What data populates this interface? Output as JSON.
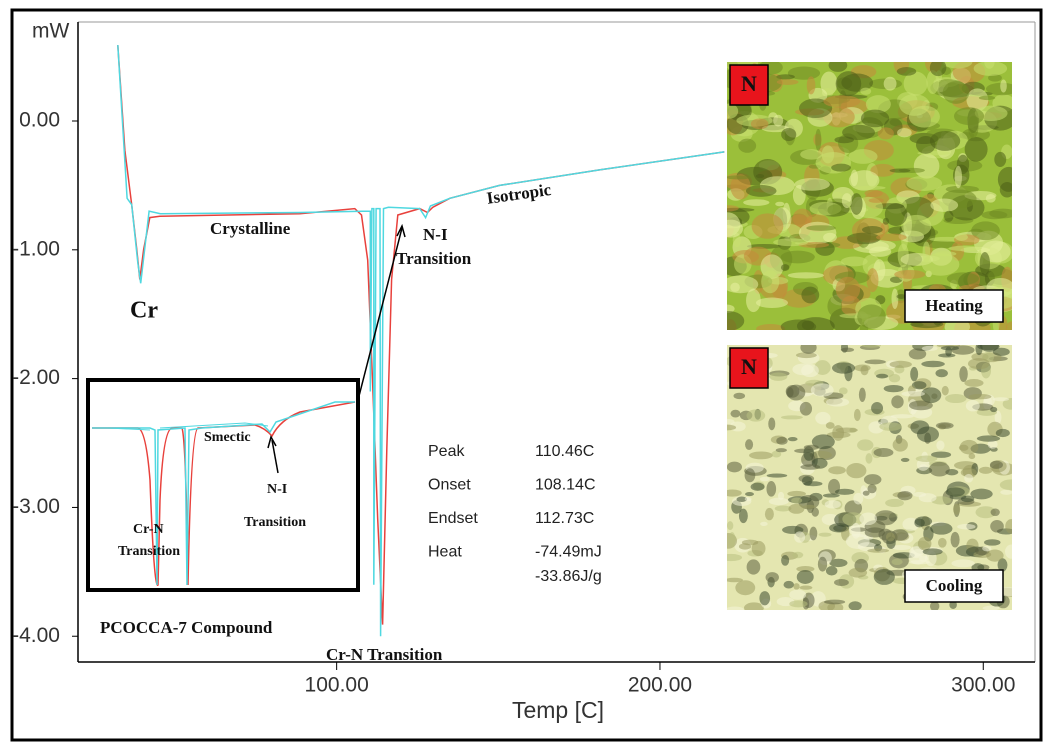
{
  "chart_data": {
    "type": "line",
    "ylabel": "mW",
    "xlabel": "Temp  [C]",
    "xlim": [
      20,
      316
    ],
    "ylim": [
      -4.2,
      0.59
    ],
    "xticks": [
      {
        "value": 100,
        "label": "100.00"
      },
      {
        "value": 200,
        "label": "200.00"
      },
      {
        "value": 300,
        "label": "300.00"
      }
    ],
    "yticks": [
      {
        "value": 0,
        "label": "0.00"
      },
      {
        "value": -1,
        "label": "-1.00"
      },
      {
        "value": -2,
        "label": "-2.00"
      },
      {
        "value": -3,
        "label": "-3.00"
      },
      {
        "value": -4,
        "label": "-4.00"
      }
    ],
    "series": [
      {
        "color": "#e8413c",
        "x": [
          32.3,
          34.5,
          36.6,
          38.2,
          39.1,
          40.3,
          42.2,
          45.3,
          88.6,
          105.6,
          107.7,
          109.6,
          111.1,
          112.7,
          114.2,
          115.5,
          117.0,
          118.9,
          125.7,
          128.1,
          129.7,
          135.0,
          150.4,
          181.3,
          219.9
        ],
        "values": [
          0.59,
          -0.23,
          -0.65,
          -1.0,
          -1.23,
          -1.0,
          -0.75,
          -0.74,
          -0.72,
          -0.68,
          -0.73,
          -1.08,
          -2.01,
          -3.09,
          -3.91,
          -2.55,
          -1.23,
          -0.73,
          -0.68,
          -0.71,
          -0.67,
          -0.6,
          -0.5,
          -0.38,
          -0.24
        ]
      },
      {
        "color": "#4fd8e0",
        "x": [
          32.3,
          35.2,
          36.6,
          38.5,
          39.4,
          40.6,
          42.0,
          45.5,
          88.6,
          108.0,
          110.4,
          110.4,
          110.9,
          111.5,
          111.5,
          112.2,
          113.4,
          113.6,
          114.5,
          116.0,
          125.7,
          127.5,
          129.0,
          135.0,
          150.4,
          181.3,
          219.9
        ],
        "values": [
          0.59,
          -0.6,
          -0.65,
          -1.1,
          -1.26,
          -1.0,
          -0.7,
          -0.72,
          -0.71,
          -0.7,
          -0.7,
          -2.1,
          -0.68,
          -0.68,
          -3.6,
          -0.68,
          -0.68,
          -4.0,
          -0.68,
          -0.67,
          -0.68,
          -0.75,
          -0.66,
          -0.6,
          -0.5,
          -0.38,
          -0.24
        ]
      }
    ],
    "annotations": [
      "Cr",
      "Crystalline",
      "N-I",
      "Transition",
      "Isotropic",
      "Cr-N Transition",
      "PCOCCA-7 Compound"
    ],
    "inset_annotations": [
      "Smectic",
      "N-I",
      "Transition",
      "Cr-N",
      "Transition"
    ],
    "stats": [
      {
        "label": "Peak",
        "value": "110.46C"
      },
      {
        "label": "Onset",
        "value": "108.14C"
      },
      {
        "label": "Endset",
        "value": "112.73C"
      },
      {
        "label": "Heat",
        "value": "-74.49mJ"
      },
      {
        "label": "",
        "value": "-33.86J/g"
      }
    ],
    "images": [
      {
        "phase": "N",
        "label": "Heating"
      },
      {
        "phase": "N",
        "label": "Cooling"
      }
    ]
  }
}
